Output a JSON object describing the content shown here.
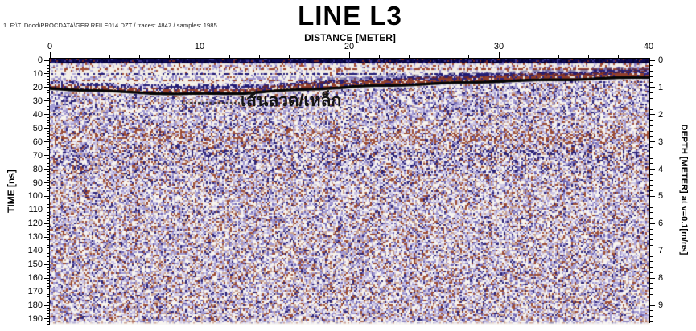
{
  "header": {
    "file_info": "1. F:\\T. Dood\\PROCDATA\\GER RFILE014.DZT / traces: 4847 / samples: 1985"
  },
  "chart": {
    "title": "LINE L3",
    "x_axis": {
      "label": "DISTANCE [METER]",
      "tick_labels": [
        "0",
        "10",
        "20",
        "30",
        "40"
      ]
    },
    "y_axis_left": {
      "label": "TIME [ns]",
      "tick_labels": [
        "0",
        "10",
        "20",
        "30",
        "40",
        "50",
        "60",
        "70",
        "80",
        "90",
        "100",
        "110",
        "120",
        "130",
        "140",
        "150",
        "160",
        "170",
        "180",
        "190"
      ]
    },
    "y_axis_right": {
      "label": "DEPTH [METER] at v=0.1[m/ns]",
      "tick_labels": [
        "0",
        "1",
        "2",
        "3",
        "4",
        "5",
        "6",
        "7",
        "8",
        "9"
      ]
    },
    "annotation": {
      "text": "เส้นลวด/เหล็ก"
    }
  },
  "chart_data": {
    "type": "heatmap",
    "title": "LINE L3",
    "xlabel": "DISTANCE [METER]",
    "ylabel_left": "TIME [ns]",
    "ylabel_right": "DEPTH [METER] at v=0.1[m/ns]",
    "x_range_m": [
      0,
      40
    ],
    "time_range_ns": [
      0,
      194
    ],
    "depth_range_m": [
      0,
      9.7
    ],
    "velocity_m_per_ns": 0.1,
    "traces": 4847,
    "samples": 1985,
    "x_major_ticks": [
      0,
      10,
      20,
      30,
      40
    ],
    "time_major_ticks_ns": [
      0,
      10,
      20,
      30,
      40,
      50,
      60,
      70,
      80,
      90,
      100,
      110,
      120,
      130,
      140,
      150,
      160,
      170,
      180,
      190
    ],
    "depth_major_ticks_m": [
      0,
      1,
      2,
      3,
      4,
      5,
      6,
      7,
      8,
      9
    ],
    "annotations": [
      {
        "text": "เส้นลวด/เหล็ก",
        "distance_m": [
          13,
          21
        ],
        "time_ns": [
          23,
          39
        ]
      }
    ],
    "features": [
      {
        "name": "wire-steel-linear-reflector",
        "style": "thick black continuous reflector",
        "points_distance_m": [
          0,
          5,
          10,
          15,
          20,
          25,
          30,
          35,
          40
        ],
        "points_time_ns": [
          21,
          23,
          24,
          23,
          20,
          18,
          15,
          14,
          12
        ]
      },
      {
        "name": "direct-wave-band",
        "time_ns": [
          0,
          12
        ],
        "style": "dense horizontal navy/red banding"
      },
      {
        "name": "red-brown-band",
        "time_ns": [
          54,
          58
        ]
      },
      {
        "name": "blue-band",
        "time_ns": [
          66,
          72
        ]
      },
      {
        "name": "background",
        "style": "speckled white/lavender/navy/red-brown noise"
      }
    ],
    "colors": {
      "navy": "#2b2376",
      "lavender": "#a29ad2",
      "red_brown": "#9c4c34",
      "background": "#f8f6f1",
      "reflector": "#060606"
    }
  }
}
